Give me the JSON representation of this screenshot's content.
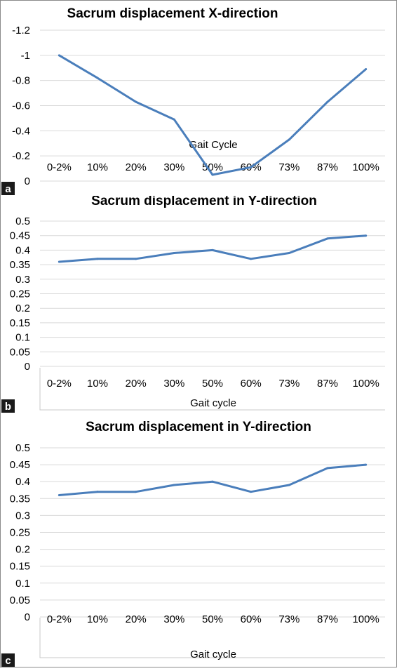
{
  "panels": [
    {
      "badge": "a",
      "chart_data": {
        "type": "line",
        "title": "Sacrum displacement X-direction",
        "xlabel": "Gait Cycle",
        "ylabel": "",
        "categories": [
          "0-2%",
          "10%",
          "20%",
          "30%",
          "50%",
          "60%",
          "73%",
          "87%",
          "100%"
        ],
        "values": [
          -1.0,
          -0.82,
          -0.63,
          -0.49,
          -0.05,
          -0.11,
          -0.33,
          -0.63,
          -0.89
        ],
        "ylim": [
          0,
          -1.2
        ],
        "y_ticks": [
          "-1.2",
          "-1",
          "-0.8",
          "-0.6",
          "-0.4",
          "-0.2",
          "0"
        ],
        "y_axis_reversed": true,
        "grid": true,
        "legend": "none",
        "line_color": "#4a7ebb"
      }
    },
    {
      "badge": "b",
      "chart_data": {
        "type": "line",
        "title": "Sacrum displacement in Y-direction",
        "xlabel": "Gait cycle",
        "ylabel": "",
        "categories": [
          "0-2%",
          "10%",
          "20%",
          "30%",
          "50%",
          "60%",
          "73%",
          "87%",
          "100%"
        ],
        "values": [
          0.36,
          0.37,
          0.37,
          0.39,
          0.4,
          0.37,
          0.39,
          0.44,
          0.45
        ],
        "ylim": [
          0,
          0.5
        ],
        "y_ticks": [
          "0.5",
          "0.45",
          "0.4",
          "0.35",
          "0.3",
          "0.25",
          "0.2",
          "0.15",
          "0.1",
          "0.05",
          "0"
        ],
        "y_axis_reversed": false,
        "grid": true,
        "legend": "none",
        "line_color": "#4a7ebb"
      }
    },
    {
      "badge": "c",
      "chart_data": {
        "type": "line",
        "title": "Sacrum displacement in Y-direction",
        "xlabel": "Gait cycle",
        "ylabel": "",
        "categories": [
          "0-2%",
          "10%",
          "20%",
          "30%",
          "50%",
          "60%",
          "73%",
          "87%",
          "100%"
        ],
        "values": [
          0.36,
          0.37,
          0.37,
          0.39,
          0.4,
          0.37,
          0.39,
          0.44,
          0.45
        ],
        "ylim": [
          0,
          0.5
        ],
        "y_ticks": [
          "0.5",
          "0.45",
          "0.4",
          "0.35",
          "0.3",
          "0.25",
          "0.2",
          "0.15",
          "0.1",
          "0.05",
          "0"
        ],
        "y_axis_reversed": false,
        "grid": true,
        "legend": "none",
        "line_color": "#4a7ebb"
      }
    }
  ]
}
